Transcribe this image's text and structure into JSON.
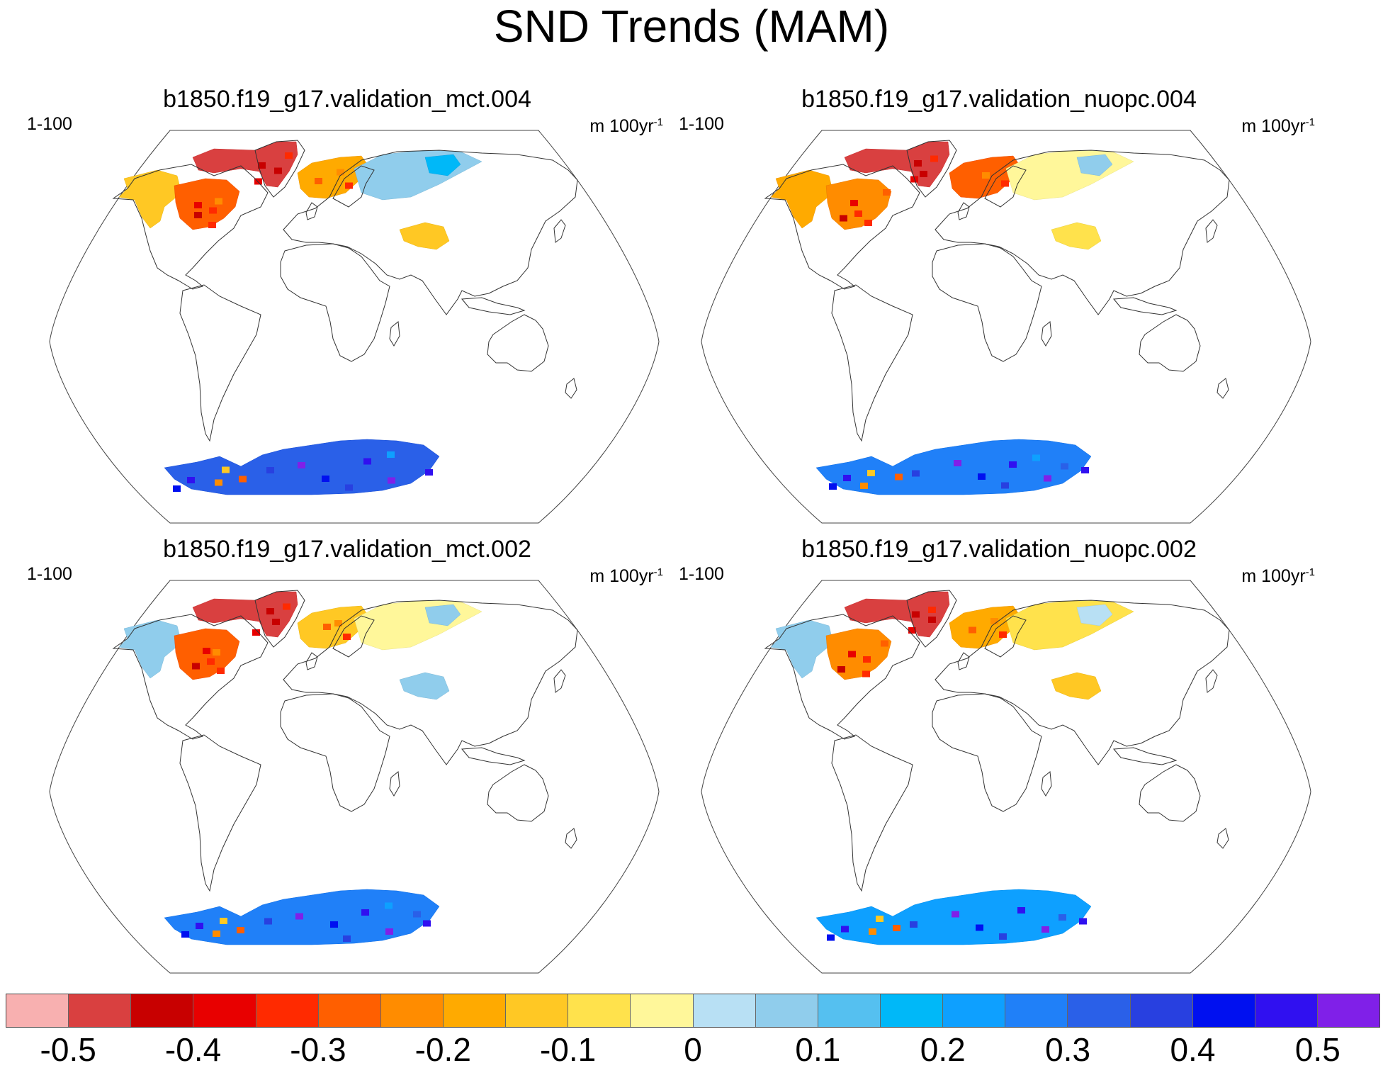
{
  "title": "SND Trends (MAM)",
  "panels": [
    {
      "title": "b1850.f19_g17.validation_mct.004",
      "years": "1-100",
      "units": "m 100yr",
      "units_exp": "-1",
      "snow_trend": {
        "north_america_east": "-0.3",
        "north_america_west": "-0.15",
        "greenland": "-0.5",
        "scandinavia": "-0.2",
        "siberia": "0.05",
        "tibet": "-0.15",
        "antarctica": "0.3"
      }
    },
    {
      "title": "b1850.f19_g17.validation_nuopc.004",
      "years": "1-100",
      "units": "m 100yr",
      "units_exp": "-1",
      "snow_trend": {
        "north_america_east": "-0.25",
        "north_america_west": "-0.2",
        "greenland": "-0.5",
        "scandinavia": "-0.3",
        "siberia": "-0.05",
        "tibet": "-0.1",
        "antarctica": "0.25"
      }
    },
    {
      "title": "b1850.f19_g17.validation_mct.002",
      "years": "1-100",
      "units": "m 100yr",
      "units_exp": "-1",
      "snow_trend": {
        "north_america_east": "-0.3",
        "north_america_west": "0.05",
        "greenland": "-0.5",
        "scandinavia": "-0.15",
        "siberia": "-0.05",
        "tibet": "0.05",
        "antarctica": "0.25"
      }
    },
    {
      "title": "b1850.f19_g17.validation_nuopc.002",
      "years": "1-100",
      "units": "m 100yr",
      "units_exp": "-1",
      "snow_trend": {
        "north_america_east": "-0.25",
        "north_america_west": "0.05",
        "greenland": "-0.5",
        "scandinavia": "-0.2",
        "siberia": "-0.1",
        "tibet": "-0.15",
        "antarctica": "0.2"
      }
    }
  ],
  "colorbar": {
    "colors": [
      "#f8b0b0",
      "#d94040",
      "#c80000",
      "#e80000",
      "#ff2a00",
      "#ff5f00",
      "#ff8c00",
      "#ffaa00",
      "#ffc824",
      "#ffe24c",
      "#fff79a",
      "#b8e0f4",
      "#90cdec",
      "#55c0f0",
      "#00b8f8",
      "#0ea0ff",
      "#2080f8",
      "#2a60e8",
      "#2840e0",
      "#0010f0",
      "#3010f0",
      "#8020e8"
    ],
    "labels": [
      "-0.5",
      "-0.4",
      "-0.3",
      "-0.2",
      "-0.1",
      "0",
      "0.1",
      "0.2",
      "0.3",
      "0.4",
      "0.5"
    ]
  }
}
